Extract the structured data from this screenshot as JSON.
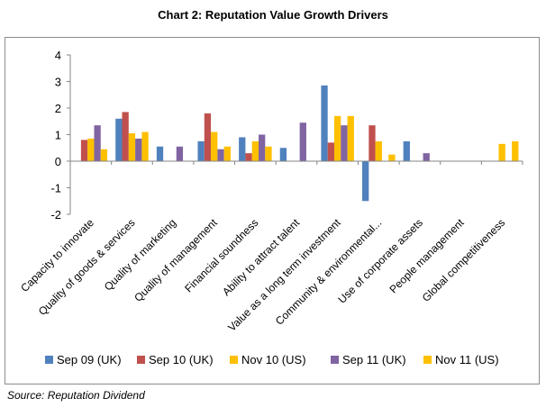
{
  "title": "Chart 2: Reputation Value Growth Drivers",
  "source": "Source: Reputation Dividend",
  "chart_data": {
    "type": "bar",
    "title": "Chart 2: Reputation Value Growth Drivers",
    "categories": [
      "Capacity to innovate",
      "Quality of goods & services",
      "Quality of marketing",
      "Quality of management",
      "Financial soundness",
      "Ability to attract talent",
      "Value as a long term investment",
      "Community & environmental...",
      "Use of corporate assets",
      "People management",
      "Global competitiveness"
    ],
    "ylim": [
      -2,
      4
    ],
    "yticks": [
      -2,
      -1,
      0,
      1,
      2,
      3,
      4
    ],
    "grid": false,
    "legend": "bottom",
    "series": [
      {
        "name": "Sep 09 (UK)",
        "color": "#4f81bd",
        "values": [
          null,
          1.6,
          0.55,
          0.75,
          0.9,
          0.5,
          2.85,
          -1.5,
          0.75,
          null,
          null
        ]
      },
      {
        "name": "Sep 10 (UK)",
        "color": "#c0504d",
        "values": [
          0.8,
          1.85,
          null,
          1.8,
          0.3,
          null,
          0.7,
          1.35,
          null,
          null,
          null
        ]
      },
      {
        "name": "Nov 10 (US)",
        "color": "#ffc000",
        "values": [
          0.85,
          1.05,
          null,
          1.1,
          0.75,
          null,
          1.7,
          0.75,
          null,
          null,
          null
        ]
      },
      {
        "name": "Sep 11 (UK)",
        "color": "#8064a2",
        "values": [
          1.35,
          0.85,
          0.55,
          0.45,
          1.0,
          1.45,
          1.35,
          null,
          0.3,
          null,
          null
        ]
      },
      {
        "name": "Nov 11 (US)",
        "color": "#ffc000",
        "values": [
          0.45,
          1.1,
          null,
          0.55,
          0.55,
          null,
          1.7,
          0.25,
          null,
          null,
          0.75
        ]
      }
    ],
    "extra_bars": [
      {
        "category": "Global competitiveness",
        "series": "Nov 10 (US)",
        "value": 0.65
      }
    ]
  }
}
